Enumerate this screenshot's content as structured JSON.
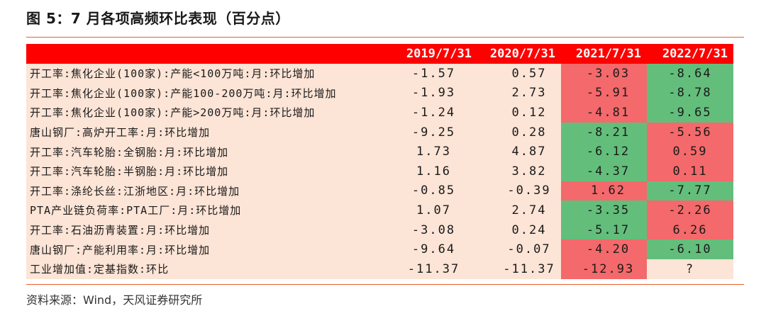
{
  "title": "图 5：7 月各项高频环比表现（百分点）",
  "source": "资料来源：Wind，天风证券研究所",
  "colors": {
    "accent": "#e8602c",
    "header_bg": "#ff0000",
    "row_bg": "#fce4d6",
    "red": "#f4696b",
    "green": "#63be7b"
  },
  "table": {
    "columns": [
      "",
      "2019/7/31",
      "2020/7/31",
      "2021/7/31",
      "2022/7/31"
    ],
    "rows": [
      {
        "label": "开工率:焦化企业(100家):产能<100万吨:月:环比增加",
        "v2019": "-1.57",
        "v2020": "0.57",
        "v2021": "-3.03",
        "v2022": "-8.64",
        "c2021": "red",
        "c2022": "green"
      },
      {
        "label": "开工率:焦化企业(100家):产能100-200万吨:月:环比增加",
        "v2019": "-1.93",
        "v2020": "2.73",
        "v2021": "-5.91",
        "v2022": "-8.78",
        "c2021": "red",
        "c2022": "green"
      },
      {
        "label": "开工率:焦化企业(100家):产能>200万吨:月:环比增加",
        "v2019": "-1.24",
        "v2020": "0.12",
        "v2021": "-4.81",
        "v2022": "-9.65",
        "c2021": "red",
        "c2022": "green"
      },
      {
        "label": "唐山钢厂:高炉开工率:月:环比增加",
        "v2019": "-9.25",
        "v2020": "0.28",
        "v2021": "-8.21",
        "v2022": "-5.56",
        "c2021": "green",
        "c2022": "red"
      },
      {
        "label": "开工率:汽车轮胎:全钢胎:月:环比增加",
        "v2019": "1.73",
        "v2020": "4.87",
        "v2021": "-6.12",
        "v2022": "0.59",
        "c2021": "green",
        "c2022": "red"
      },
      {
        "label": "开工率:汽车轮胎:半钢胎:月:环比增加",
        "v2019": "1.16",
        "v2020": "3.82",
        "v2021": "-4.37",
        "v2022": "0.11",
        "c2021": "green",
        "c2022": "red"
      },
      {
        "label": "开工率:涤纶长丝:江浙地区:月:环比增加",
        "v2019": "-0.85",
        "v2020": "-0.39",
        "v2021": "1.62",
        "v2022": "-7.77",
        "c2021": "red",
        "c2022": "green"
      },
      {
        "label": "PTA产业链负荷率:PTA工厂:月:环比增加",
        "v2019": "1.07",
        "v2020": "2.74",
        "v2021": "-3.35",
        "v2022": "-2.26",
        "c2021": "green",
        "c2022": "red"
      },
      {
        "label": "开工率:石油沥青装置:月:环比增加",
        "v2019": "-3.08",
        "v2020": "0.24",
        "v2021": "-5.17",
        "v2022": "6.26",
        "c2021": "green",
        "c2022": "red"
      },
      {
        "label": "唐山钢厂:产能利用率:月:环比增加",
        "v2019": "-9.64",
        "v2020": "-0.07",
        "v2021": "-4.20",
        "v2022": "-6.10",
        "c2021": "red",
        "c2022": "green"
      },
      {
        "label": "工业增加值:定基指数:环比",
        "v2019": "-11.37",
        "v2020": "-11.37",
        "v2021": "-12.93",
        "v2022": "?",
        "c2021": "red",
        "c2022": "plain"
      }
    ]
  }
}
